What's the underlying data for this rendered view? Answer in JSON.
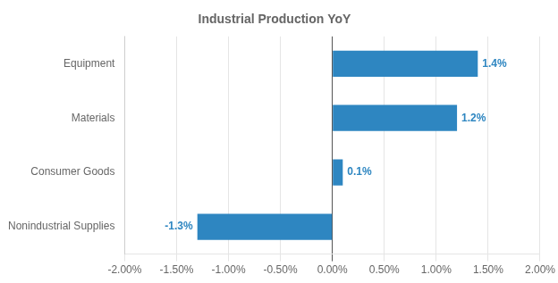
{
  "chart_data": {
    "type": "bar",
    "orientation": "horizontal",
    "title": "Industrial Production YoY",
    "categories": [
      "Nonindustrial Supplies",
      "Consumer Goods",
      "Materials",
      "Equipment"
    ],
    "values": [
      -0.013,
      0.001,
      0.012,
      0.014
    ],
    "value_labels": [
      "-1.3%",
      "0.1%",
      "1.2%",
      "1.4%"
    ],
    "data_labels": true,
    "color": "#2E86C1",
    "xlim": [
      -0.02,
      0.02
    ],
    "xticks": [
      {
        "value": -0.02,
        "label": "-2.00%"
      },
      {
        "value": -0.015,
        "label": "-1.50%"
      },
      {
        "value": -0.01,
        "label": "-1.00%"
      },
      {
        "value": -0.005,
        "label": "-0.50%"
      },
      {
        "value": 0.0,
        "label": "0.00%"
      },
      {
        "value": 0.005,
        "label": "0.50%"
      },
      {
        "value": 0.01,
        "label": "1.00%"
      },
      {
        "value": 0.015,
        "label": "1.50%"
      },
      {
        "value": 0.02,
        "label": "2.00%"
      }
    ],
    "grid": true
  }
}
